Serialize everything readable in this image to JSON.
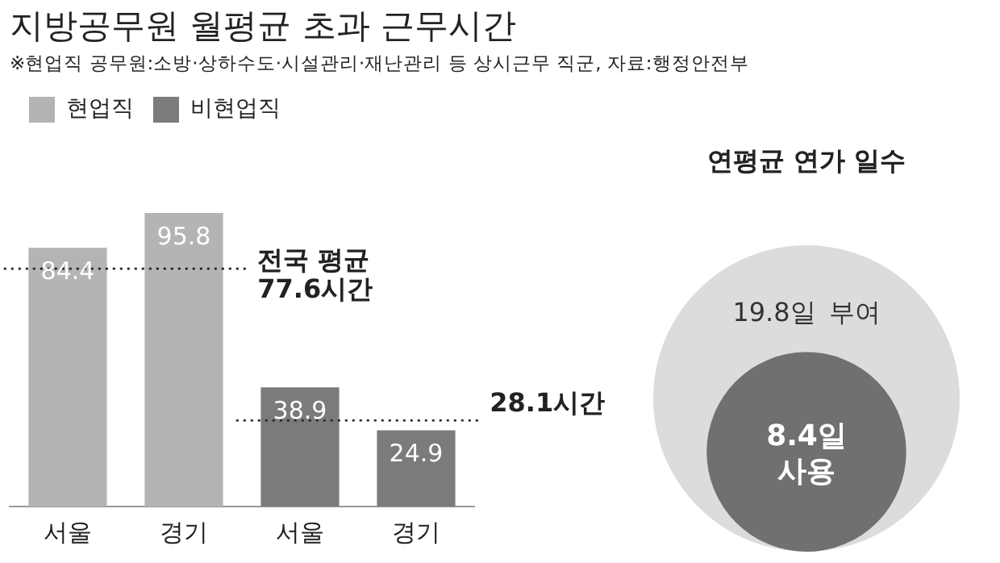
{
  "chart_data": [
    {
      "type": "bar",
      "title": "지방공무원 월평균 초과 근무시간",
      "subtitle": "※현업직 공무원:소방·상하수도·시설관리·재난관리 등 상시근무 직군, 자료:행정안전부",
      "categories": [
        "서울",
        "경기",
        "서울",
        "경기"
      ],
      "series": [
        {
          "name": "현업직",
          "color": "#b4b4b4",
          "values": [
            84.4,
            95.8,
            null,
            null
          ]
        },
        {
          "name": "비현업직",
          "color": "#7b7b7b",
          "values": [
            null,
            null,
            38.9,
            24.9
          ]
        }
      ],
      "data_labels": true,
      "legend": "top left",
      "grid": false,
      "tick_labels": "x",
      "ref_lines": [
        {
          "axis": "y",
          "value": 77.6,
          "label": "전국 평균 77.6시간",
          "line_style": "dotted",
          "color": "#222222"
        },
        {
          "axis": "y",
          "value": 28.1,
          "label": "28.1시간",
          "line_style": "dotted",
          "color": "#222222"
        }
      ]
    },
    {
      "type": "other",
      "title": "연평균 연가 일수",
      "categories": [
        "부여",
        "사용"
      ],
      "values": [
        19.8,
        8.4
      ],
      "value_labels": [
        "19.8일",
        "8.4일"
      ],
      "colors": [
        "#dcdcdc",
        "#707070"
      ]
    }
  ]
}
